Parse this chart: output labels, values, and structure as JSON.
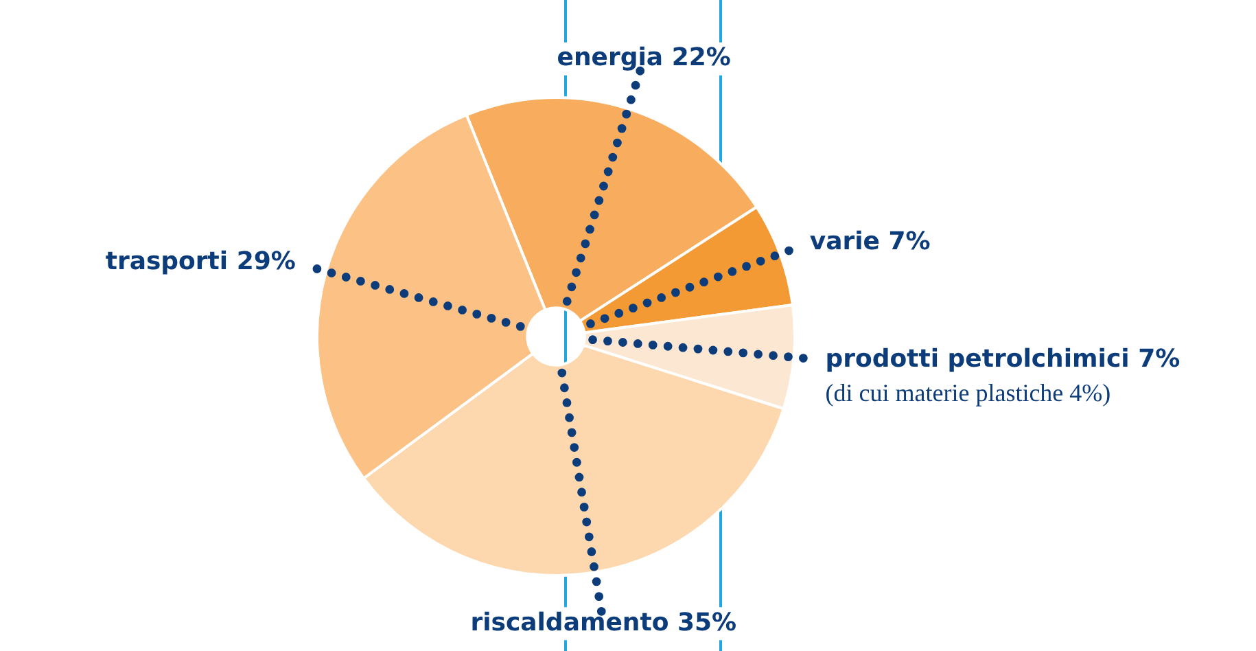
{
  "chart_data": {
    "type": "pie",
    "categories": [
      "energia",
      "varie",
      "prodotti petrolchimici",
      "riscaldamento",
      "trasporti"
    ],
    "values": [
      22,
      7,
      7,
      35,
      29
    ],
    "value_labels": [
      "22%",
      "7%",
      "7%",
      "35%",
      "29%"
    ],
    "colors": [
      "#f8ad5e",
      "#f39a34",
      "#fce8d2",
      "#fdd7ae",
      "#fbc185"
    ],
    "annotations": [
      "(di cui materie plastiche 4%)"
    ],
    "legend": false
  }
}
